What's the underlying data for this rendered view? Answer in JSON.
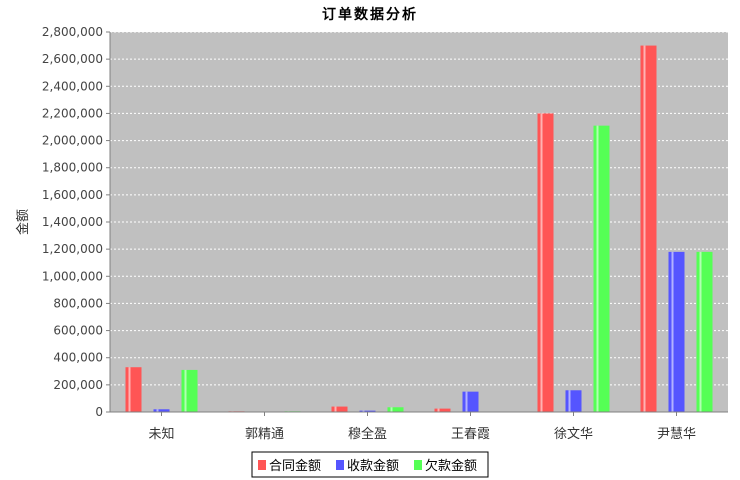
{
  "chart_data": {
    "type": "bar",
    "title": "订单数据分析",
    "xlabel": "",
    "ylabel": "金额",
    "ylim": [
      0,
      2800000
    ],
    "ytick_step": 200000,
    "grid": true,
    "legend_position": "bottom",
    "categories": [
      "未知",
      "郭精通",
      "穆全盈",
      "王春霞",
      "徐文华",
      "尹慧华"
    ],
    "series": [
      {
        "name": "合同金额",
        "color": "#ff5555",
        "values": [
          330000,
          5000,
          40000,
          25000,
          2200000,
          2700000
        ]
      },
      {
        "name": "收款金额",
        "color": "#5555ff",
        "values": [
          20000,
          0,
          10000,
          150000,
          160000,
          1180000
        ]
      },
      {
        "name": "欠款金额",
        "color": "#55ff55",
        "values": [
          310000,
          5000,
          35000,
          0,
          2110000,
          1180000
        ]
      }
    ]
  }
}
